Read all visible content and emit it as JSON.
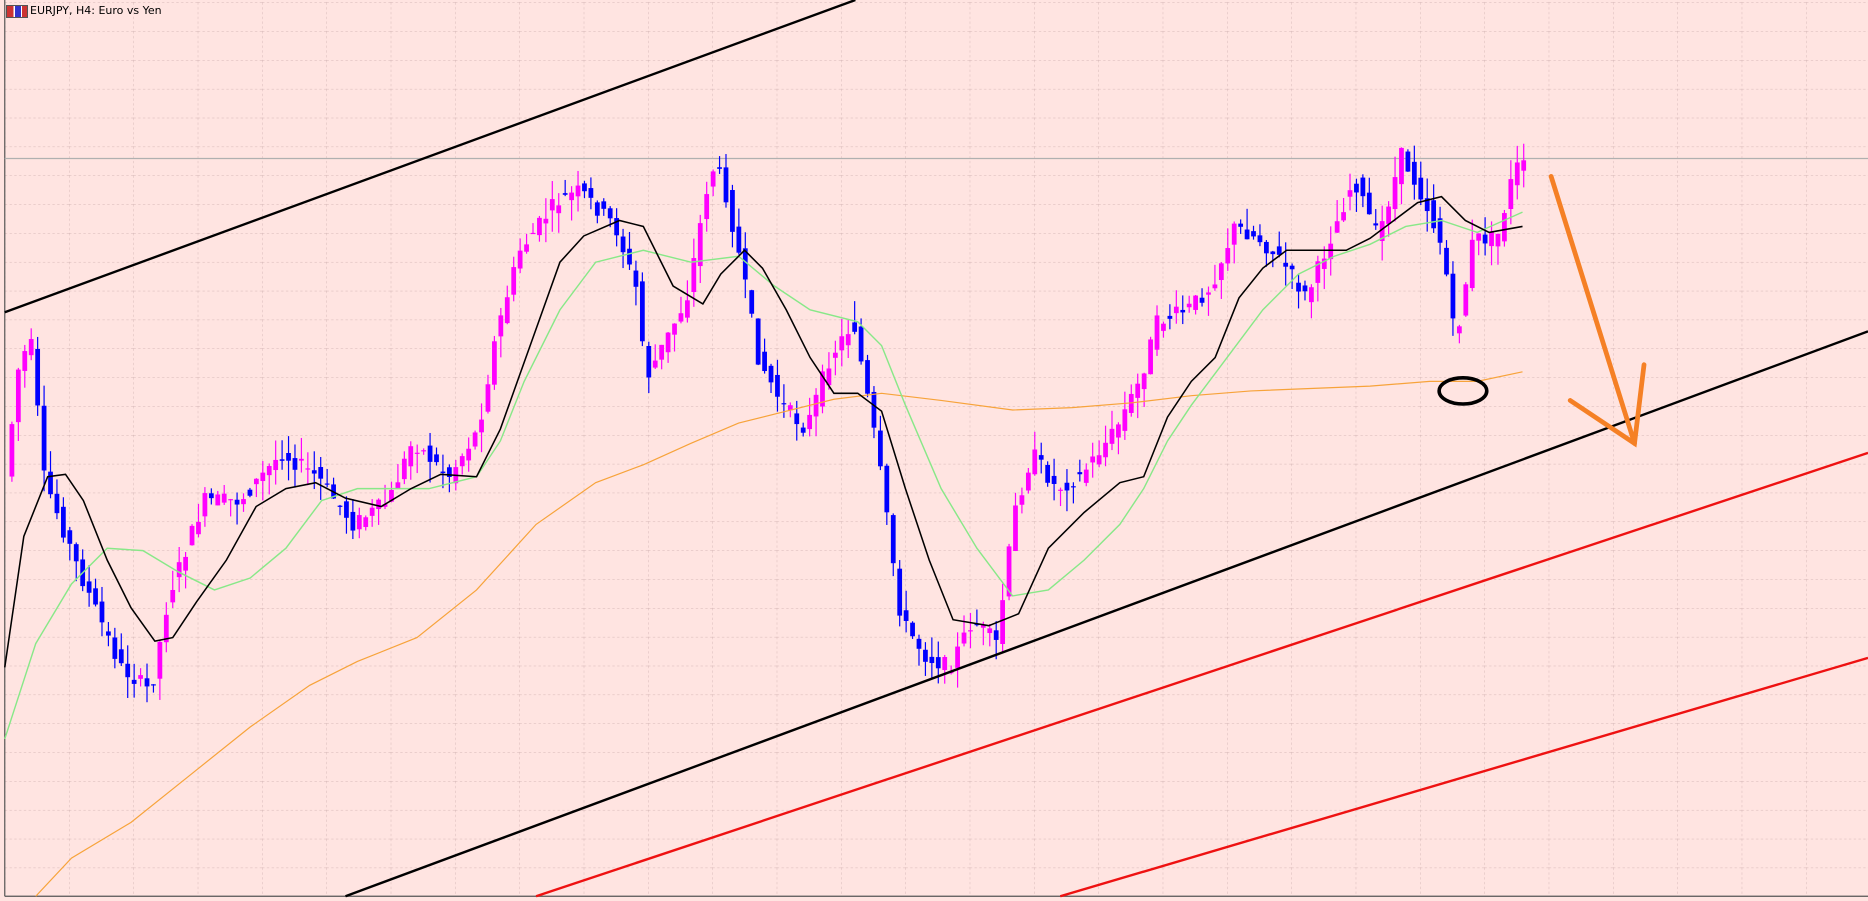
{
  "window": {
    "title": "EURJPY, H4: Euro vs Yen"
  }
}
